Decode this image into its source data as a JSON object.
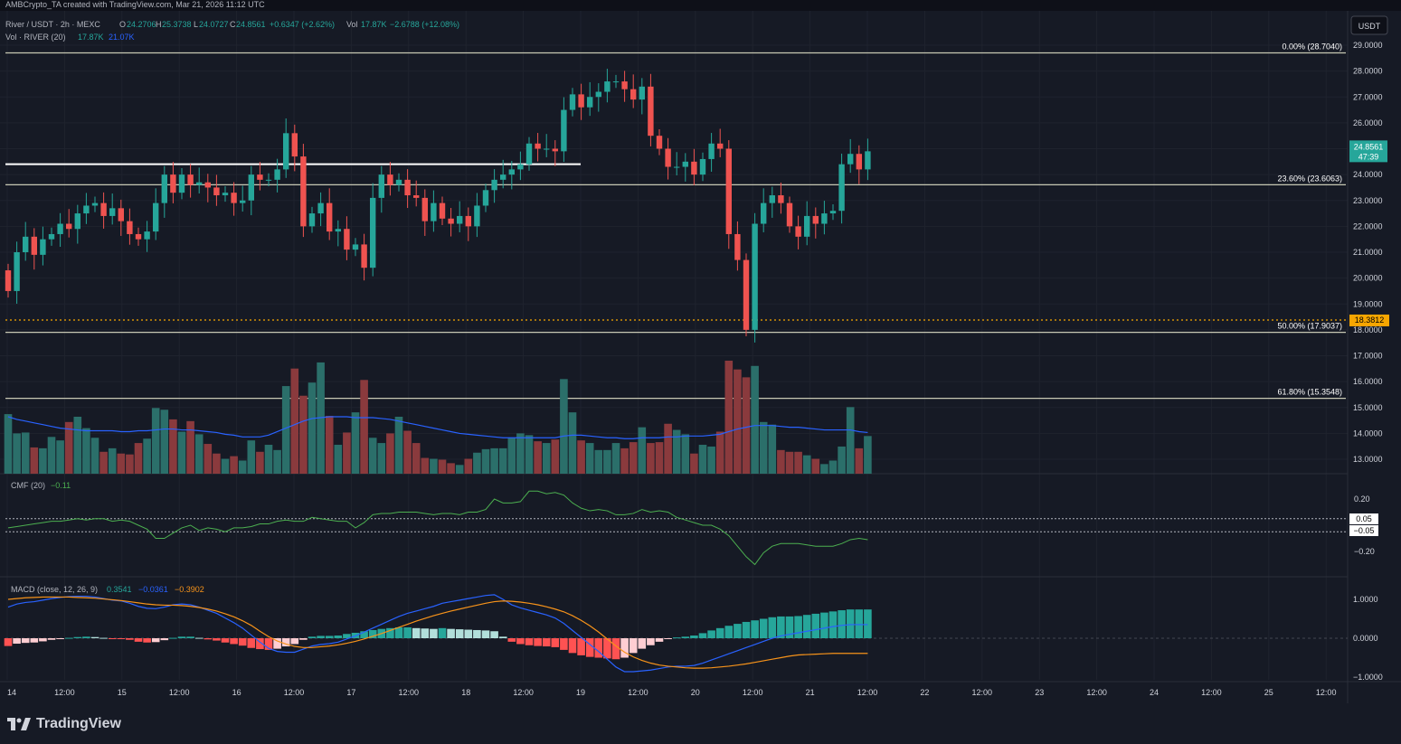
{
  "header": {
    "credit": "AMBCrypto_TA created with TradingView.com, Mar 21, 2026 11:12 UTC"
  },
  "legend": {
    "symbol": "River / USDT · 2h · MEXC",
    "o_label": "O",
    "o": "24.2706",
    "h_label": "H",
    "h": "25.3738",
    "l_label": "L",
    "l": "24.0727",
    "c_label": "C",
    "c": "24.8561",
    "chg": "+0.6347 (+2.62%)",
    "vol_label": "Vol",
    "vol": "17.87K",
    "vol_chg": "−2.6788 (+12.08%)",
    "vol_ind": "Vol · RIVER (20)",
    "vol_a": "17.87K",
    "vol_b": "21.07K",
    "cmf_label": "CMF (20)",
    "cmf_val": "−0.11",
    "macd_label": "MACD (close, 12, 26, 9)",
    "macd_a": "0.3541",
    "macd_b": "−0.0361",
    "macd_c": "−0.3902"
  },
  "currency_button": "USDT",
  "price_badge": {
    "price": "24.8561",
    "countdown": "47:39"
  },
  "orange_badge": "18.3812",
  "cmf_badges": [
    "0.05",
    "−0.05"
  ],
  "brand": "TradingView",
  "colors": {
    "up": "#26a69a",
    "down": "#ef5350",
    "bg": "#161a25",
    "fib": "#c8c8b4",
    "orange": "#f7a600"
  },
  "chart_data": [
    {
      "type": "candlestick",
      "title": "River / USDT · 2h · MEXC",
      "y_ticks": [
        "29.0000",
        "28.0000",
        "27.0000",
        "26.0000",
        "25.0000",
        "24.0000",
        "23.0000",
        "22.0000",
        "21.0000",
        "20.0000",
        "19.0000",
        "18.0000",
        "17.0000",
        "16.0000",
        "15.0000",
        "14.0000",
        "13.0000"
      ],
      "x_ticks": [
        "14",
        "12:00",
        "15",
        "12:00",
        "16",
        "12:00",
        "17",
        "12:00",
        "18",
        "12:00",
        "19",
        "12:00",
        "20",
        "12:00",
        "21",
        "12:00",
        "22",
        "12:00",
        "23",
        "12:00",
        "24",
        "12:00",
        "25",
        "12:00"
      ],
      "fib_levels": [
        {
          "label": "0.00% (28.7040)",
          "value": 28.704
        },
        {
          "label": "23.60% (23.6063)",
          "value": 23.6063
        },
        {
          "label": "50.00% (17.9037)",
          "value": 17.9037
        },
        {
          "label": "61.80% (15.3548)",
          "value": 15.3548
        }
      ],
      "resistance": 24.4,
      "orange_level": 18.3812,
      "closes": [
        19.5,
        21.0,
        21.6,
        20.9,
        21.5,
        21.7,
        22.1,
        21.9,
        22.5,
        22.8,
        22.9,
        22.4,
        22.7,
        22.2,
        21.7,
        21.5,
        21.8,
        22.9,
        24.0,
        23.3,
        24.0,
        23.6,
        23.7,
        23.5,
        23.2,
        23.3,
        22.9,
        23.0,
        24.0,
        23.8,
        23.8,
        24.2,
        25.6,
        24.7,
        22.0,
        22.5,
        22.9,
        21.8,
        21.9,
        21.1,
        21.3,
        20.4,
        23.1,
        24.0,
        23.6,
        23.8,
        23.2,
        23.1,
        22.2,
        22.9,
        22.3,
        22.1,
        22.4,
        22.0,
        22.8,
        23.4,
        23.8,
        24.0,
        24.2,
        24.4,
        25.2,
        25.0,
        25.0,
        24.9,
        26.5,
        27.1,
        26.6,
        27.0,
        27.2,
        27.6,
        27.6,
        27.3,
        26.9,
        27.4,
        25.5,
        25.0,
        24.3,
        24.3,
        24.5,
        24.0,
        24.6,
        25.2,
        25.0,
        21.7,
        20.7,
        18.0,
        22.1,
        22.9,
        23.2,
        22.9,
        22.0,
        21.6,
        22.4,
        22.1,
        22.5,
        22.6,
        24.4,
        24.8,
        24.2,
        24.9
      ]
    },
    {
      "type": "bar",
      "title": "Vol · RIVER (20)",
      "values": [
        6.8,
        4.6,
        4.7,
        3.0,
        2.9,
        4.2,
        3.8,
        5.9,
        6.5,
        5.2,
        4.1,
        2.5,
        2.9,
        2.3,
        2.2,
        3.5,
        4.0,
        7.5,
        7.3,
        6.2,
        4.8,
        6.0,
        4.5,
        3.4,
        2.3,
        1.7,
        2.0,
        1.5,
        3.8,
        2.5,
        3.3,
        2.7,
        10.0,
        12.0,
        8.9,
        10.4,
        12.7,
        6.6,
        3.3,
        4.7,
        7.0,
        10.7,
        4.1,
        3.5,
        4.6,
        6.5,
        4.9,
        3.5,
        1.8,
        1.7,
        1.6,
        1.2,
        1.0,
        1.7,
        2.4,
        2.8,
        2.9,
        2.9,
        4.1,
        4.6,
        4.4,
        3.7,
        3.5,
        3.9,
        10.8,
        7.0,
        3.8,
        3.5,
        2.7,
        2.7,
        3.5,
        2.9,
        3.6,
        5.3,
        3.5,
        3.6,
        5.7,
        5.0,
        4.5,
        2.3,
        3.3,
        3.1,
        4.8,
        12.9,
        11.9,
        11.0,
        12.3,
        5.9,
        5.6,
        2.7,
        2.5,
        2.5,
        2.1,
        1.7,
        1.1,
        1.5,
        3.1,
        7.6,
        2.9,
        4.3
      ],
      "ma20": [
        6.5,
        6.2,
        6.0,
        5.8,
        5.6,
        5.4,
        5.2,
        5.1,
        5.0,
        4.9,
        4.9,
        4.9,
        4.9,
        4.8,
        4.8,
        4.9,
        4.9,
        5.0,
        5.1,
        5.1,
        5.0,
        5.0,
        4.9,
        4.8,
        4.7,
        4.5,
        4.4,
        4.2,
        4.2,
        4.2,
        4.4,
        4.8,
        5.2,
        5.6,
        6.0,
        6.3,
        6.4,
        6.5,
        6.5,
        6.5,
        6.4,
        6.4,
        6.4,
        6.3,
        6.2,
        6.0,
        5.8,
        5.6,
        5.4,
        5.2,
        5.0,
        4.8,
        4.6,
        4.5,
        4.4,
        4.3,
        4.2,
        4.1,
        4.1,
        4.1,
        4.1,
        4.1,
        4.1,
        4.1,
        4.3,
        4.4,
        4.4,
        4.3,
        4.2,
        4.1,
        4.1,
        4.0,
        4.0,
        4.1,
        4.1,
        4.1,
        4.2,
        4.2,
        4.3,
        4.3,
        4.3,
        4.4,
        4.5,
        4.8,
        5.1,
        5.3,
        5.5,
        5.5,
        5.5,
        5.4,
        5.3,
        5.3,
        5.2,
        5.1,
        5.0,
        5.0,
        5.0,
        5.0,
        4.8,
        4.7
      ]
    },
    {
      "type": "line",
      "title": "CMF (20)",
      "y_ticks": [
        "0.20",
        "−0.20"
      ],
      "bands": [
        0.05,
        -0.05
      ],
      "values": [
        -0.02,
        -0.01,
        0.0,
        0.01,
        0.02,
        0.03,
        0.03,
        0.04,
        0.05,
        0.04,
        0.05,
        0.05,
        0.03,
        0.04,
        0.03,
        0.0,
        -0.03,
        -0.1,
        -0.1,
        -0.06,
        -0.02,
        0.0,
        -0.04,
        -0.02,
        -0.03,
        -0.05,
        -0.02,
        -0.02,
        -0.01,
        0.01,
        0.01,
        0.03,
        0.04,
        0.03,
        0.03,
        0.06,
        0.05,
        0.04,
        0.03,
        0.03,
        -0.02,
        0.02,
        0.08,
        0.09,
        0.09,
        0.1,
        0.1,
        0.1,
        0.09,
        0.08,
        0.09,
        0.09,
        0.08,
        0.1,
        0.1,
        0.12,
        0.2,
        0.17,
        0.17,
        0.18,
        0.26,
        0.26,
        0.24,
        0.25,
        0.23,
        0.17,
        0.13,
        0.11,
        0.12,
        0.11,
        0.08,
        0.08,
        0.09,
        0.12,
        0.1,
        0.11,
        0.1,
        0.06,
        0.04,
        0.02,
        0.0,
        0.0,
        -0.03,
        -0.08,
        -0.16,
        -0.24,
        -0.3,
        -0.21,
        -0.16,
        -0.14,
        -0.14,
        -0.14,
        -0.15,
        -0.16,
        -0.16,
        -0.16,
        -0.14,
        -0.11,
        -0.1,
        -0.11
      ]
    },
    {
      "type": "line",
      "title": "MACD (close, 12, 26, 9)",
      "y_ticks": [
        "1.0000",
        "0.0000",
        "−1.0000"
      ],
      "macd": [
        0.8,
        0.88,
        0.92,
        0.94,
        0.98,
        1.02,
        1.05,
        1.07,
        1.08,
        1.08,
        1.06,
        1.02,
        0.98,
        0.96,
        0.9,
        0.82,
        0.77,
        0.76,
        0.8,
        0.86,
        0.88,
        0.86,
        0.8,
        0.72,
        0.64,
        0.52,
        0.4,
        0.26,
        0.08,
        -0.1,
        -0.26,
        -0.34,
        -0.36,
        -0.36,
        -0.28,
        -0.2,
        -0.16,
        -0.14,
        -0.1,
        -0.02,
        0.06,
        0.16,
        0.26,
        0.36,
        0.46,
        0.56,
        0.64,
        0.7,
        0.76,
        0.82,
        0.9,
        0.94,
        0.98,
        1.02,
        1.06,
        1.1,
        1.12,
        1.0,
        0.86,
        0.78,
        0.72,
        0.66,
        0.6,
        0.52,
        0.38,
        0.2,
        0.02,
        -0.16,
        -0.34,
        -0.54,
        -0.74,
        -0.86,
        -0.86,
        -0.84,
        -0.82,
        -0.78,
        -0.74,
        -0.72,
        -0.72,
        -0.7,
        -0.64,
        -0.56,
        -0.48,
        -0.4,
        -0.32,
        -0.24,
        -0.16,
        -0.08,
        0.0,
        0.06,
        0.1,
        0.14,
        0.18,
        0.22,
        0.26,
        0.3,
        0.33,
        0.35,
        0.35,
        0.35
      ],
      "signal": [
        1.0,
        1.02,
        1.04,
        1.05,
        1.06,
        1.06,
        1.06,
        1.06,
        1.05,
        1.04,
        1.03,
        1.01,
        0.99,
        0.97,
        0.94,
        0.91,
        0.88,
        0.86,
        0.85,
        0.85,
        0.84,
        0.82,
        0.79,
        0.75,
        0.7,
        0.63,
        0.55,
        0.45,
        0.33,
        0.18,
        0.04,
        -0.07,
        -0.15,
        -0.21,
        -0.24,
        -0.24,
        -0.22,
        -0.2,
        -0.17,
        -0.13,
        -0.08,
        -0.02,
        0.05,
        0.12,
        0.2,
        0.28,
        0.36,
        0.44,
        0.51,
        0.58,
        0.64,
        0.7,
        0.75,
        0.8,
        0.85,
        0.9,
        0.94,
        0.96,
        0.95,
        0.93,
        0.9,
        0.86,
        0.81,
        0.75,
        0.68,
        0.58,
        0.46,
        0.32,
        0.16,
        -0.02,
        -0.2,
        -0.36,
        -0.48,
        -0.57,
        -0.64,
        -0.69,
        -0.72,
        -0.74,
        -0.76,
        -0.77,
        -0.77,
        -0.76,
        -0.74,
        -0.72,
        -0.69,
        -0.66,
        -0.62,
        -0.58,
        -0.54,
        -0.5,
        -0.46,
        -0.43,
        -0.42,
        -0.41,
        -0.4,
        -0.39,
        -0.39,
        -0.39,
        -0.39,
        -0.39
      ]
    }
  ]
}
